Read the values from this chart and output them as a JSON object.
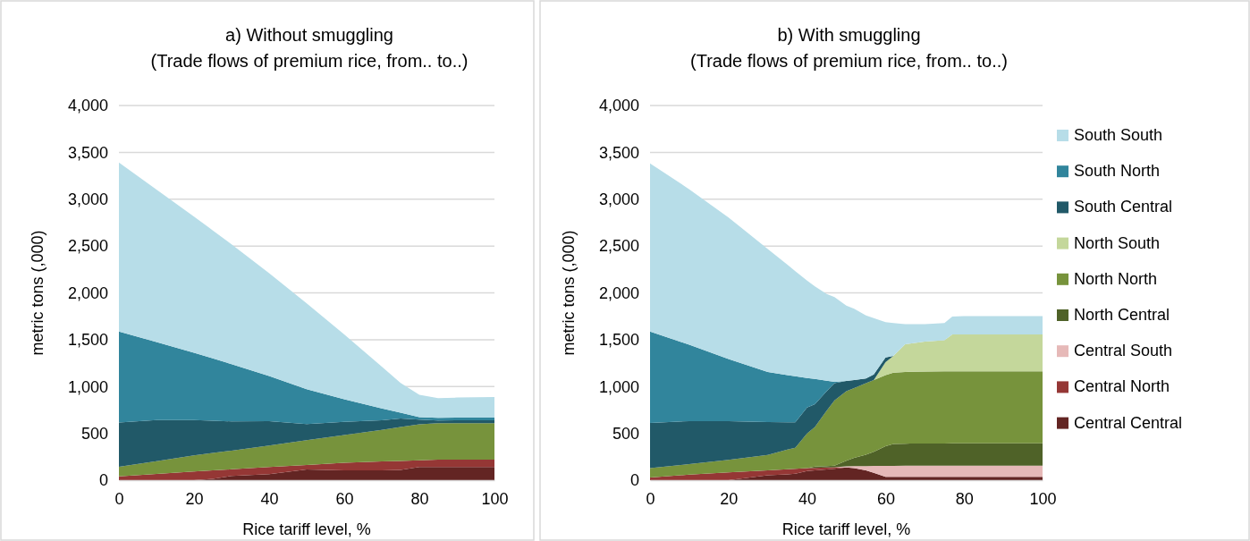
{
  "chart_data": [
    {
      "type": "area",
      "stacked": true,
      "title": "a) Without smuggling",
      "subtitle": "(Trade flows of premium rice, from.. to..)",
      "xlabel": "Rice tariff level, %",
      "ylabel": "metric tons (,000)",
      "x": [
        0,
        10,
        20,
        25,
        30,
        40,
        50,
        60,
        70,
        75,
        80,
        85,
        90,
        100
      ],
      "xlim": [
        0,
        100
      ],
      "xticks": [
        0,
        20,
        40,
        60,
        80,
        100
      ],
      "ylim": [
        0,
        4000
      ],
      "yticks": [
        0,
        {
          "value": 500,
          "label": "500"
        },
        {
          "value": 1000,
          "label": "1,000"
        },
        {
          "value": 1500,
          "label": "1,500"
        },
        {
          "value": 2000,
          "label": "2,000"
        },
        {
          "value": 2500,
          "label": "2,500"
        },
        {
          "value": 3000,
          "label": "3,000"
        },
        {
          "value": 3500,
          "label": "3,500"
        },
        {
          "value": 4000,
          "label": "4,000"
        }
      ],
      "grid": "y",
      "legend": false,
      "series": [
        {
          "color": "#632523",
          "values": [
            null,
            null,
            0,
            15,
            45,
            65,
            115,
            105,
            105,
            110,
            140,
            140,
            140,
            140
          ]
        },
        {
          "color": "#953735",
          "values": [
            40,
            66,
            92,
            89,
            71,
            75,
            47,
            80,
            95,
            96,
            73,
            80,
            80,
            80
          ]
        },
        {
          "color": "#77933c",
          "values": [
            103,
            138,
            172,
            186,
            200,
            229,
            265,
            296,
            338,
            361,
            383,
            388,
            388,
            388
          ]
        },
        {
          "color": "#215968",
          "values": [
            472,
            439,
            379,
            345,
            311,
            262,
            172,
            143,
            102,
            92,
            50,
            29,
            32,
            32
          ]
        },
        {
          "color": "#31859c",
          "values": [
            971,
            831,
            717,
            665,
            612,
            480,
            372,
            239,
            127,
            61,
            26,
            29,
            28,
            29
          ]
        },
        {
          "color": "#b7dde8",
          "values": [
            1806,
            1628,
            1455,
            1367,
            1280,
            1099,
            918,
            694,
            446,
            318,
            239,
            210,
            214,
            220
          ]
        }
      ]
    },
    {
      "type": "area",
      "stacked": true,
      "title": "b) With smuggling",
      "subtitle": "(Trade flows of premium rice, from.. to..)",
      "xlabel": "Rice tariff level, %",
      "ylabel": "metric tons (,000)",
      "x": [
        0,
        10,
        20,
        30,
        35,
        37,
        40,
        42,
        45,
        47,
        50,
        52,
        55,
        57,
        60,
        62,
        65,
        70,
        75,
        77,
        80,
        90,
        100
      ],
      "xlim": [
        0,
        100
      ],
      "xticks": [
        0,
        20,
        40,
        60,
        80,
        100
      ],
      "ylim": [
        0,
        4000
      ],
      "yticks": [
        0,
        {
          "value": 500,
          "label": "500"
        },
        {
          "value": 1000,
          "label": "1,000"
        },
        {
          "value": 1500,
          "label": "1,500"
        },
        {
          "value": 2000,
          "label": "2,000"
        },
        {
          "value": 2500,
          "label": "2,500"
        },
        {
          "value": 3000,
          "label": "3,000"
        },
        {
          "value": 3500,
          "label": "3,500"
        },
        {
          "value": 4000,
          "label": "4,000"
        }
      ],
      "grid": "y",
      "legend": "right",
      "series": [
        {
          "name": "Central Central",
          "color": "#632523",
          "values": [
            null,
            null,
            0,
            52,
            62,
            69,
            97,
            105,
            114,
            121,
            135,
            128,
            104,
            79,
            35,
            35,
            35,
            35,
            35,
            35,
            35,
            35,
            35
          ]
        },
        {
          "name": "Central North",
          "color": "#953735",
          "values": [
            28,
            59,
            83,
            52,
            54,
            52,
            31,
            26,
            21,
            17,
            0,
            null,
            null,
            null,
            null,
            null,
            null,
            null,
            null,
            null,
            null,
            null,
            null
          ]
        },
        {
          "name": "Central South",
          "color": "#e6b9b8",
          "values": [
            null,
            null,
            null,
            null,
            null,
            null,
            null,
            null,
            null,
            0,
            13,
            22,
            46,
            73,
            118,
            118,
            119,
            119,
            120,
            120,
            120,
            120,
            120
          ]
        },
        {
          "name": "North Central",
          "color": "#4f6228",
          "values": [
            null,
            null,
            null,
            null,
            null,
            null,
            0,
            14,
            15,
            17,
            59,
            88,
            123,
            152,
            209,
            233,
            236,
            238,
            237,
            238,
            238,
            239,
            239
          ]
        },
        {
          "name": "North North",
          "color": "#77933c",
          "values": [
            100,
            113,
            134,
            165,
            212,
            224,
            372,
            424,
            592,
            697,
            742,
            745,
            762,
            766,
            759,
            763,
            766,
            768,
            770,
            770,
            770,
            769,
            769
          ]
        },
        {
          "name": "North South",
          "color": "#c4d79b",
          "values": [
            null,
            null,
            null,
            null,
            null,
            null,
            null,
            null,
            null,
            null,
            null,
            null,
            null,
            0,
            138,
            179,
            294,
            320,
            332,
            392,
            392,
            392,
            392
          ]
        },
        {
          "name": "South Central",
          "color": "#215968",
          "values": [
            482,
            459,
            414,
            352,
            290,
            273,
            276,
            242,
            207,
            183,
            110,
            87,
            52,
            58,
            52,
            0,
            null,
            null,
            null,
            null,
            null,
            null,
            null
          ]
        },
        {
          "name": "South North",
          "color": "#31859c",
          "values": [
            977,
            815,
            663,
            535,
            503,
            492,
            314,
            269,
            113,
            15,
            0,
            null,
            null,
            null,
            null,
            null,
            null,
            null,
            null,
            null,
            null,
            null,
            null
          ]
        },
        {
          "name": "South South",
          "color": "#b7dde8",
          "values": [
            1796,
            1660,
            1511,
            1312,
            1179,
            1122,
            1041,
            990,
            927,
            905,
            806,
            760,
            672,
            602,
            377,
            350,
            217,
            187,
            183,
            193,
            197,
            197,
            197
          ]
        }
      ]
    }
  ]
}
